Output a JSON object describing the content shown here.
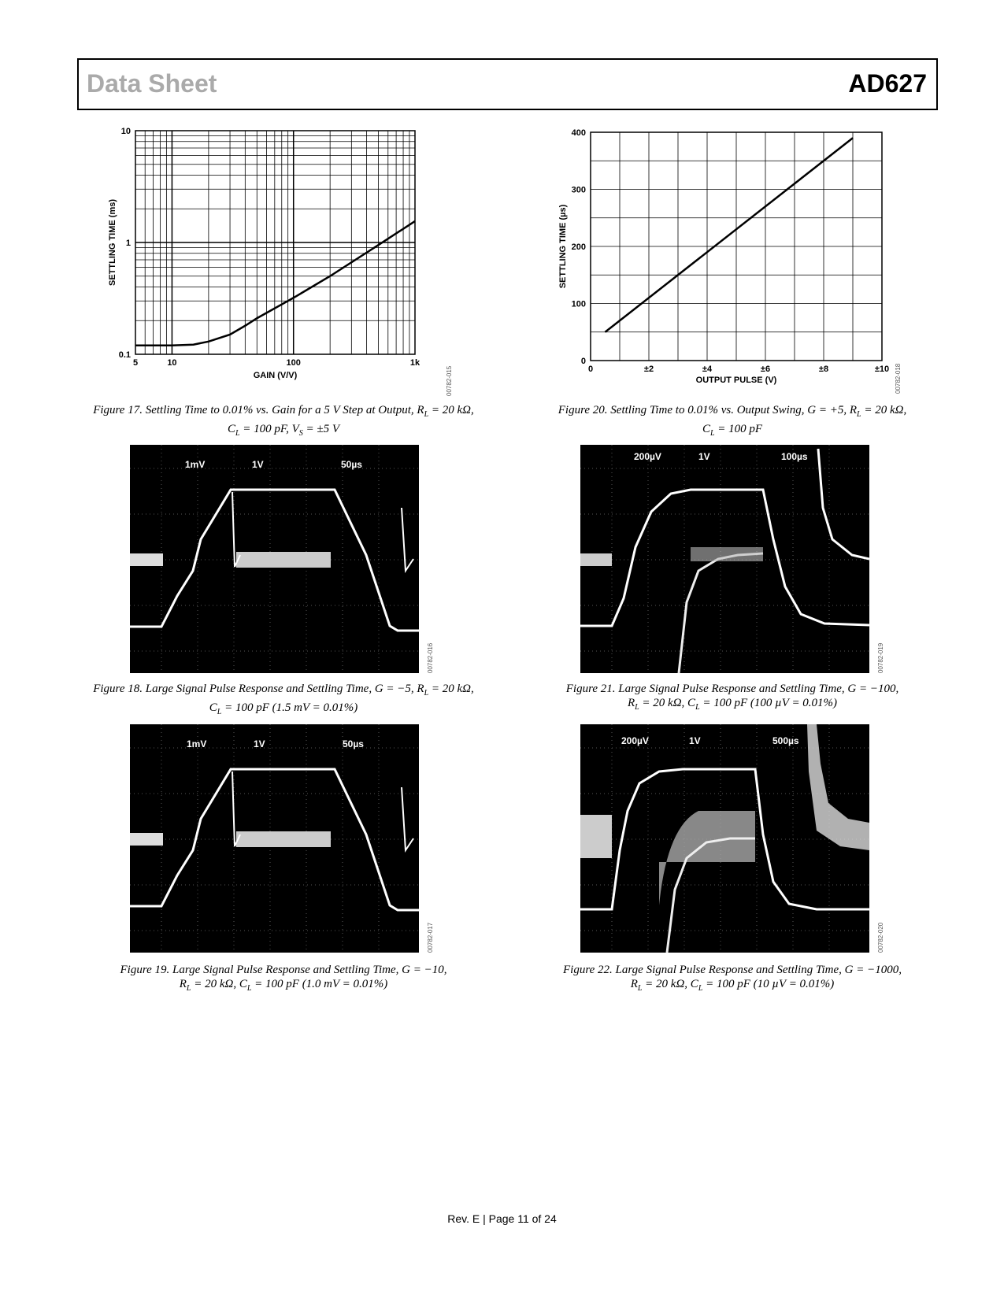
{
  "header": {
    "left": "Data Sheet",
    "right": "AD627"
  },
  "figures": {
    "f17": {
      "caption_line1": "Figure 17. Settling Time to 0.01% vs. Gain for a 5 V Step at Output, R",
      "caption_line1_sub": "L",
      "caption_line1_end": " = 20 kΩ,",
      "caption_line2": "C",
      "caption_line2_sub1": "L",
      "caption_line2_mid": " = 100 pF, V",
      "caption_line2_sub2": "S",
      "caption_line2_end": " = ±5 V",
      "code": "00782-015"
    },
    "f20": {
      "caption_line1": "Figure 20. Settling Time to 0.01% vs. Output Swing, G = +5, R",
      "caption_line1_sub": "L",
      "caption_line1_end": " = 20 kΩ,",
      "caption_line2": "C",
      "caption_line2_sub": "L",
      "caption_line2_end": " = 100 pF",
      "code": "00782-018"
    },
    "f18": {
      "labels": [
        "1mV",
        "1V",
        "50µs"
      ],
      "caption_line1": "Figure 18. Large Signal Pulse Response and Settling Time, G = −5, R",
      "caption_line1_sub": "L",
      "caption_line1_end": " = 20 kΩ,",
      "caption_line2": "C",
      "caption_line2_sub": "L",
      "caption_line2_end": " = 100 pF (1.5 mV = 0.01%)",
      "code": "00782-016"
    },
    "f21": {
      "labels": [
        "200µV",
        "1V",
        "100µs"
      ],
      "caption_line1": "Figure 21. Large Signal Pulse Response and Settling Time, G = −100,",
      "caption_line2": "R",
      "caption_line2_sub1": "L",
      "caption_line2_mid": " = 20 kΩ, C",
      "caption_line2_sub2": "L",
      "caption_line2_end": " = 100 pF (100 µV = 0.01%)",
      "code": "00782-019"
    },
    "f19": {
      "labels": [
        "1mV",
        "1V",
        "50µs"
      ],
      "caption_line1": "Figure 19. Large Signal Pulse Response and Settling Time, G = −10,",
      "caption_line2": "R",
      "caption_line2_sub1": "L",
      "caption_line2_mid": " = 20 kΩ, C",
      "caption_line2_sub2": "L",
      "caption_line2_end": " = 100 pF (1.0 mV = 0.01%)",
      "code": "00782-017"
    },
    "f22": {
      "labels": [
        "200µV",
        "1V",
        "500µs"
      ],
      "caption_line1": "Figure 22. Large Signal Pulse Response and Settling Time, G = −1000,",
      "caption_line2": "R",
      "caption_line2_sub1": "L",
      "caption_line2_mid": " = 20 kΩ, C",
      "caption_line2_sub2": "L",
      "caption_line2_end": " = 100 pF (10 µV = 0.01%)",
      "code": "00782-020"
    }
  },
  "footer": "Rev. E | Page 11 of 24",
  "chart_data": [
    {
      "type": "line",
      "xlabel": "GAIN (V/V)",
      "ylabel": "SETTLING TIME (ms)",
      "xscale": "log",
      "yscale": "log",
      "xlim": [
        5,
        1000
      ],
      "ylim": [
        0.1,
        10
      ],
      "x_ticks": [
        "5",
        "10",
        "100",
        "1k"
      ],
      "y_ticks": [
        "0.1",
        "1",
        "10"
      ],
      "grid": true,
      "x": [
        5,
        10,
        15,
        20,
        30,
        40,
        50,
        100,
        200,
        500,
        1000
      ],
      "y": [
        0.12,
        0.12,
        0.122,
        0.13,
        0.15,
        0.18,
        0.21,
        0.32,
        0.5,
        0.95,
        1.55
      ]
    },
    {
      "type": "line",
      "xlabel": "OUTPUT PULSE (V)",
      "ylabel": "SETTLING TIME (µs)",
      "xlim": [
        0,
        10
      ],
      "ylim": [
        0,
        400
      ],
      "x_ticks": [
        "0",
        "±2",
        "±4",
        "±6",
        "±8",
        "±10"
      ],
      "y_ticks": [
        "0",
        "100",
        "200",
        "300",
        "400"
      ],
      "grid": true,
      "x": [
        0.5,
        9.0
      ],
      "y": [
        50,
        390
      ]
    }
  ]
}
